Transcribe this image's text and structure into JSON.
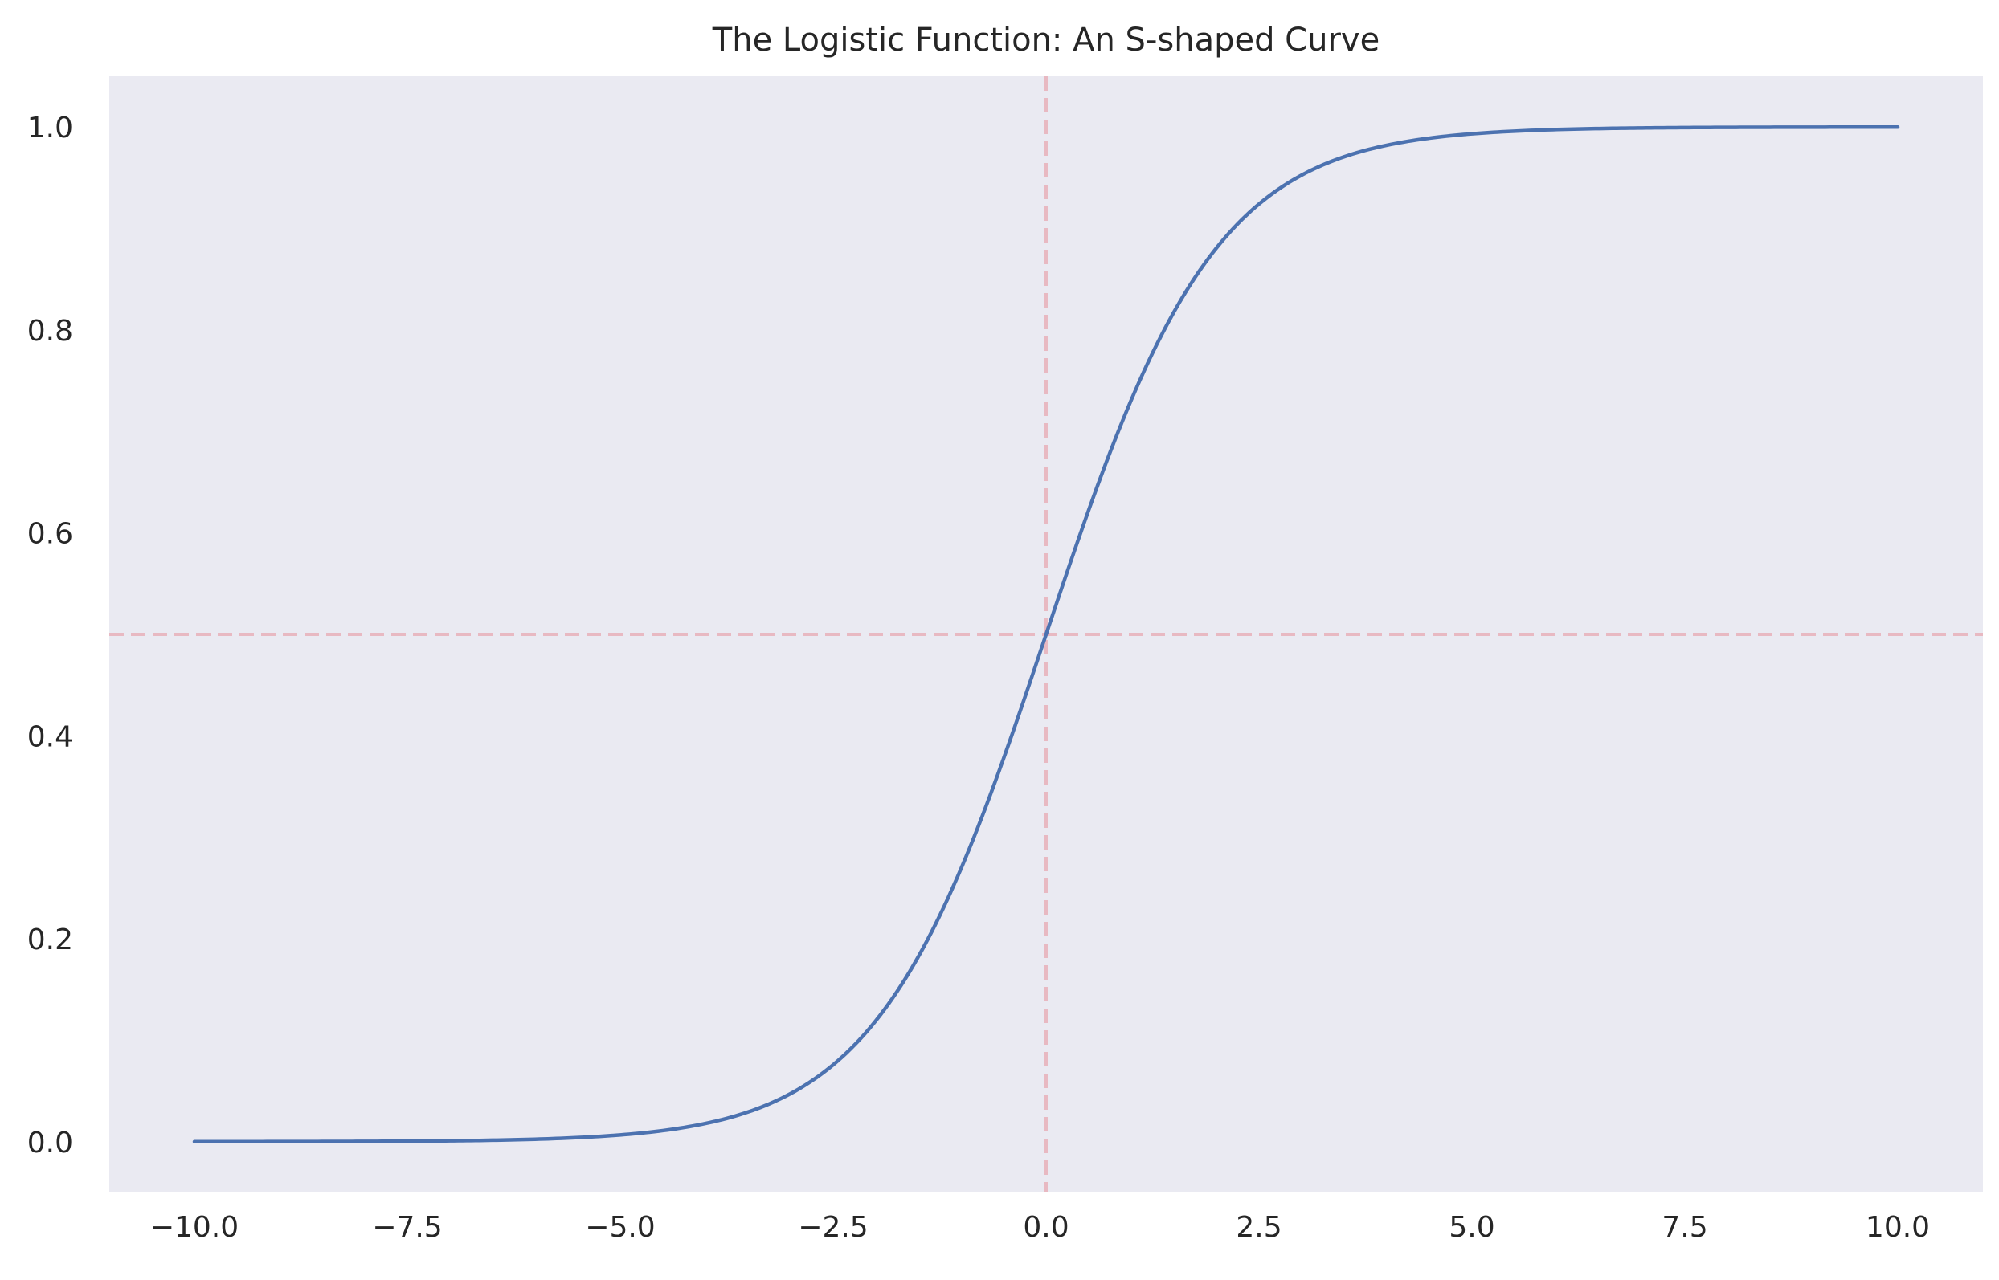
{
  "chart_data": {
    "type": "line",
    "title": "The Logistic Function: An S-shaped Curve",
    "xlabel": "",
    "ylabel": "",
    "xlim": [
      -11,
      11
    ],
    "ylim": [
      -0.05,
      1.05
    ],
    "x_ticks": [
      -10.0,
      -7.5,
      -5.0,
      -2.5,
      0.0,
      2.5,
      5.0,
      7.5,
      10.0
    ],
    "x_tick_labels": [
      "−10.0",
      "−7.5",
      "−5.0",
      "−2.5",
      "0.0",
      "2.5",
      "5.0",
      "7.5",
      "10.0"
    ],
    "y_ticks": [
      0.0,
      0.2,
      0.4,
      0.6,
      0.8,
      1.0
    ],
    "y_tick_labels": [
      "0.0",
      "0.2",
      "0.4",
      "0.6",
      "0.8",
      "1.0"
    ],
    "grid": false,
    "legend": "none",
    "series": [
      {
        "function": "1 / (1 + exp(-x))",
        "x_range": [
          -10,
          10
        ],
        "color": "#4c72b0",
        "x": [
          -10,
          -9,
          -8,
          -7,
          -6,
          -5,
          -4,
          -3,
          -2.5,
          -2,
          -1.5,
          -1,
          -0.5,
          0,
          0.5,
          1,
          1.5,
          2,
          2.5,
          3,
          4,
          5,
          6,
          7,
          8,
          9,
          10
        ],
        "y": [
          0.0,
          0.0001,
          0.0003,
          0.0009,
          0.0025,
          0.0067,
          0.018,
          0.0474,
          0.0759,
          0.1192,
          0.1824,
          0.2689,
          0.3775,
          0.5,
          0.6225,
          0.7311,
          0.8176,
          0.8808,
          0.9241,
          0.9526,
          0.982,
          0.9933,
          0.9975,
          0.9991,
          0.9997,
          0.9999,
          1.0
        ]
      }
    ],
    "reference_lines": [
      {
        "orientation": "horizontal",
        "value": 0.5,
        "style": "dashed",
        "color": "#e8b9c2"
      },
      {
        "orientation": "vertical",
        "value": 0.0,
        "style": "dashed",
        "color": "#e8b9c2"
      }
    ],
    "colors": {
      "plot_background": "#eaeaf2",
      "figure_background": "#ffffff",
      "text": "#262626"
    }
  }
}
